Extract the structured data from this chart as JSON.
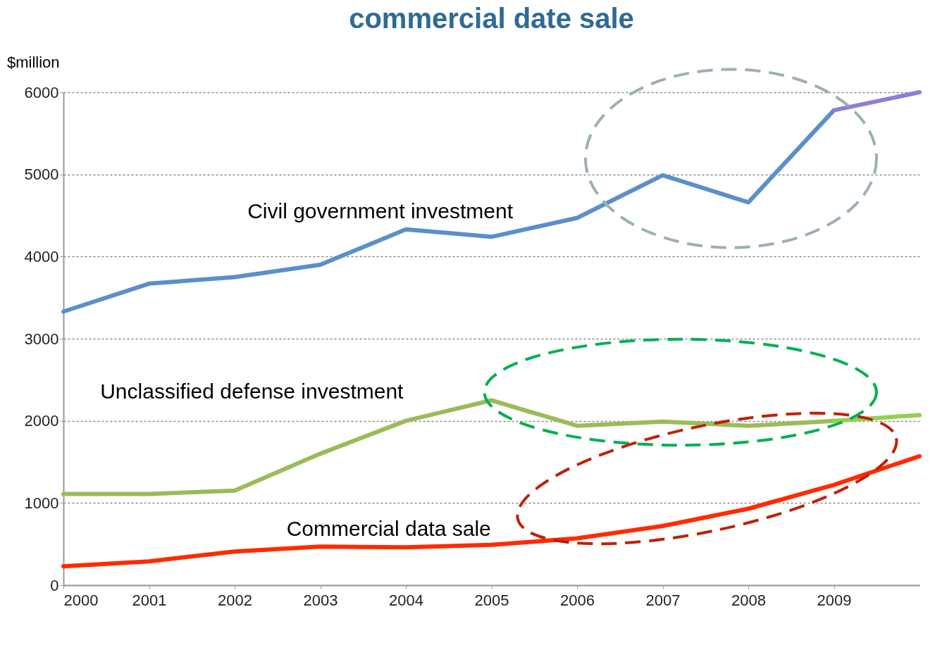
{
  "chart_data": {
    "type": "line",
    "title": "commercial date sale",
    "ylabel": "$million",
    "xlim": [
      2000,
      2010
    ],
    "xticks": [
      2000,
      2001,
      2002,
      2003,
      2004,
      2005,
      2006,
      2007,
      2008,
      2009
    ],
    "ylim": [
      0,
      6000
    ],
    "yticks": [
      0,
      1000,
      2000,
      3000,
      4000,
      5000,
      6000
    ],
    "grid": "y",
    "line_style": "solid",
    "marker": "none",
    "x": [
      2000,
      2001,
      2002,
      2003,
      2004,
      2005,
      2006,
      2007,
      2008,
      2009
    ],
    "series": [
      {
        "name": "Civil government investment",
        "color": "#5b8fc9",
        "values": [
          3330,
          3670,
          3750,
          3900,
          4330,
          4240,
          4470,
          4990,
          4660,
          5780
        ]
      },
      {
        "name": "Unclassified defense investment",
        "color": "#9bbb59",
        "values": [
          1110,
          1110,
          1150,
          1600,
          2000,
          2250,
          1940,
          1990,
          1940,
          2000
        ]
      },
      {
        "name": "Commercial data sale",
        "color": "#ff2a00",
        "x": [
          2000,
          2001,
          2002,
          2003,
          2004,
          2005,
          2006,
          2007,
          2008,
          2009,
          2010
        ],
        "values": [
          230,
          290,
          410,
          470,
          460,
          490,
          570,
          720,
          930,
          1220,
          1570
        ]
      },
      {
        "type": "line",
        "color": "#8a80d8",
        "x": [
          2009,
          2010
        ],
        "values": [
          5780,
          6000
        ]
      },
      {
        "type": "line",
        "color": "#92d050",
        "x": [
          2009,
          2010
        ],
        "values": [
          2000,
          2070
        ]
      }
    ]
  }
}
